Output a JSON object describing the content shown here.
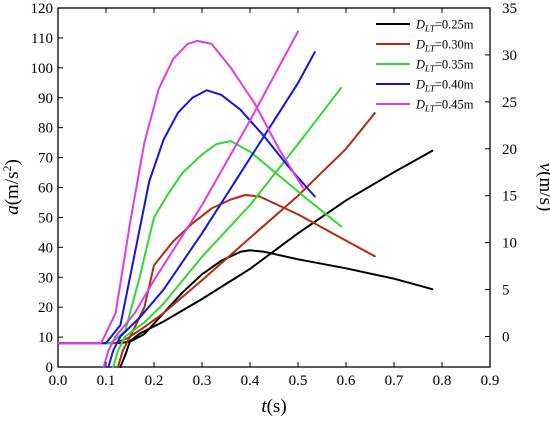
{
  "chart_data": {
    "type": "line",
    "x_axis": {
      "label_italic": "t",
      "label_unit": "(s)",
      "range": [
        0.0,
        0.9
      ],
      "ticks": [
        0.0,
        0.1,
        0.2,
        0.3,
        0.4,
        0.5,
        0.6,
        0.7,
        0.8,
        0.9
      ],
      "tick_labels": [
        "0.0",
        "0.1",
        "0.2",
        "0.3",
        "0.4",
        "0.5",
        "0.6",
        "0.7",
        "0.8",
        "0.9"
      ]
    },
    "y_left": {
      "label_italic": "a",
      "label_unit": "(m/s",
      "label_sup": "2",
      "label_close": ")",
      "range": [
        0,
        120
      ],
      "ticks": [
        0,
        10,
        20,
        30,
        40,
        50,
        60,
        70,
        80,
        90,
        100,
        110,
        120
      ],
      "tick_labels": [
        "0",
        "10",
        "20",
        "30",
        "40",
        "50",
        "60",
        "70",
        "80",
        "90",
        "100",
        "110",
        "120"
      ]
    },
    "y_right": {
      "label_italic": "v",
      "label_unit": "(m/s)",
      "range": [
        -3.25,
        35
      ],
      "ticks": [
        0,
        5,
        10,
        15,
        20,
        25,
        30,
        35
      ],
      "tick_labels": [
        "0",
        "5",
        "10",
        "15",
        "20",
        "25",
        "30",
        "35"
      ]
    },
    "legend": {
      "placement": "top-right",
      "prefix": "D",
      "subscript": "LT"
    },
    "series": [
      {
        "name": "=0.25m",
        "color": "#000000",
        "acceleration": [
          [
            0.0,
            8
          ],
          [
            0.13,
            8
          ],
          [
            0.15,
            8.5
          ],
          [
            0.18,
            11
          ],
          [
            0.22,
            18
          ],
          [
            0.26,
            25
          ],
          [
            0.3,
            31
          ],
          [
            0.34,
            35.5
          ],
          [
            0.38,
            38.5
          ],
          [
            0.4,
            39
          ],
          [
            0.43,
            38.5
          ],
          [
            0.5,
            36
          ],
          [
            0.6,
            33
          ],
          [
            0.7,
            29.5
          ],
          [
            0.78,
            26
          ]
        ],
        "velocity": [
          [
            0.13,
            -3.25
          ],
          [
            0.14,
            -2
          ],
          [
            0.15,
            -0.5
          ],
          [
            0.17,
            0.3
          ],
          [
            0.22,
            1.6
          ],
          [
            0.3,
            4.0
          ],
          [
            0.4,
            7.2
          ],
          [
            0.5,
            11
          ],
          [
            0.6,
            14.5
          ],
          [
            0.7,
            17.5
          ],
          [
            0.78,
            19.8
          ]
        ]
      },
      {
        "name": "=0.30m",
        "color": "#b22a10",
        "acceleration": [
          [
            0.0,
            8
          ],
          [
            0.12,
            8
          ],
          [
            0.15,
            10
          ],
          [
            0.18,
            20
          ],
          [
            0.2,
            34
          ],
          [
            0.24,
            42
          ],
          [
            0.28,
            48
          ],
          [
            0.32,
            53
          ],
          [
            0.36,
            56
          ],
          [
            0.39,
            57.5
          ],
          [
            0.42,
            57
          ],
          [
            0.5,
            51
          ],
          [
            0.58,
            44
          ],
          [
            0.66,
            37
          ]
        ],
        "velocity": [
          [
            0.125,
            -3.25
          ],
          [
            0.135,
            -1.5
          ],
          [
            0.15,
            0
          ],
          [
            0.18,
            1.0
          ],
          [
            0.22,
            2.5
          ],
          [
            0.3,
            6.0
          ],
          [
            0.4,
            10.5
          ],
          [
            0.5,
            15
          ],
          [
            0.6,
            20
          ],
          [
            0.66,
            23.8
          ]
        ]
      },
      {
        "name": "=0.35m",
        "color": "#33d633",
        "acceleration": [
          [
            0.0,
            8
          ],
          [
            0.11,
            8
          ],
          [
            0.14,
            12
          ],
          [
            0.17,
            30
          ],
          [
            0.2,
            50
          ],
          [
            0.23,
            58
          ],
          [
            0.26,
            65
          ],
          [
            0.3,
            71
          ],
          [
            0.33,
            74.5
          ],
          [
            0.36,
            75.5
          ],
          [
            0.4,
            72
          ],
          [
            0.46,
            64
          ],
          [
            0.52,
            56
          ],
          [
            0.59,
            47
          ]
        ],
        "velocity": [
          [
            0.115,
            -3.25
          ],
          [
            0.125,
            -1.5
          ],
          [
            0.14,
            0
          ],
          [
            0.18,
            1.5
          ],
          [
            0.22,
            3.5
          ],
          [
            0.3,
            8.5
          ],
          [
            0.4,
            14
          ],
          [
            0.5,
            20.5
          ],
          [
            0.59,
            26.5
          ]
        ]
      },
      {
        "name": "=0.40m",
        "color": "#1515d9",
        "acceleration": [
          [
            0.0,
            8
          ],
          [
            0.1,
            8
          ],
          [
            0.13,
            14
          ],
          [
            0.16,
            38
          ],
          [
            0.19,
            62
          ],
          [
            0.22,
            76
          ],
          [
            0.25,
            85
          ],
          [
            0.28,
            90
          ],
          [
            0.31,
            92.5
          ],
          [
            0.34,
            91
          ],
          [
            0.38,
            86
          ],
          [
            0.43,
            77
          ],
          [
            0.48,
            67
          ],
          [
            0.535,
            57
          ]
        ],
        "velocity": [
          [
            0.105,
            -3.25
          ],
          [
            0.115,
            -1.5
          ],
          [
            0.13,
            0
          ],
          [
            0.17,
            2.0
          ],
          [
            0.22,
            5.0
          ],
          [
            0.3,
            11
          ],
          [
            0.4,
            19
          ],
          [
            0.5,
            27
          ],
          [
            0.535,
            30.3
          ]
        ]
      },
      {
        "name": "=0.45m",
        "color": "#dd3de6",
        "acceleration": [
          [
            0.0,
            8
          ],
          [
            0.09,
            8
          ],
          [
            0.12,
            18
          ],
          [
            0.15,
            48
          ],
          [
            0.18,
            75
          ],
          [
            0.21,
            93
          ],
          [
            0.24,
            103
          ],
          [
            0.27,
            108
          ],
          [
            0.29,
            109
          ],
          [
            0.32,
            108
          ],
          [
            0.36,
            100
          ],
          [
            0.41,
            88
          ],
          [
            0.46,
            73
          ],
          [
            0.51,
            60
          ]
        ],
        "velocity": [
          [
            0.095,
            -3.25
          ],
          [
            0.105,
            -1.5
          ],
          [
            0.12,
            0
          ],
          [
            0.16,
            2.5
          ],
          [
            0.2,
            6.0
          ],
          [
            0.3,
            14
          ],
          [
            0.4,
            23
          ],
          [
            0.5,
            32.5
          ]
        ]
      }
    ]
  }
}
